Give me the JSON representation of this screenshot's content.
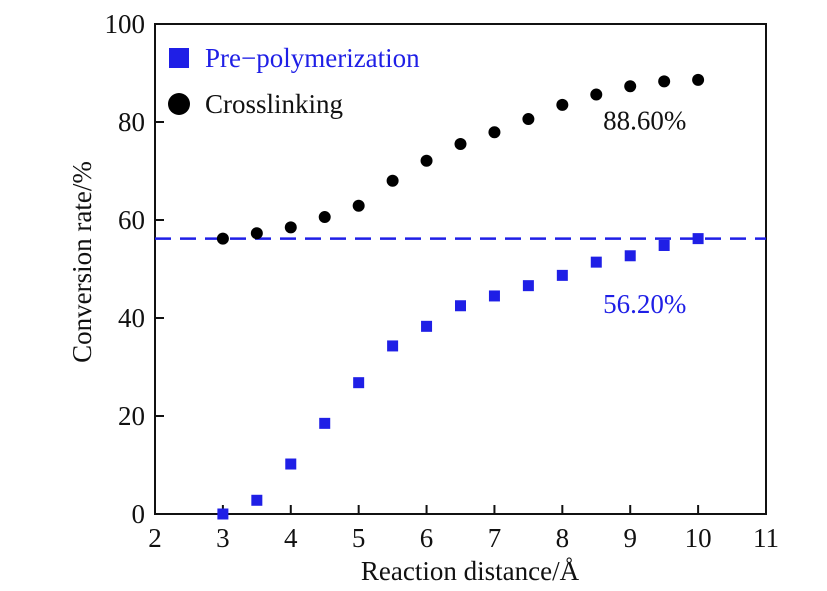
{
  "chart_data": {
    "type": "scatter",
    "xlabel": "Reaction distance/Å",
    "ylabel": "Conversion rate/%",
    "xlim": [
      2,
      11
    ],
    "ylim": [
      0,
      100
    ],
    "x_ticks": [
      2,
      3,
      4,
      5,
      6,
      7,
      8,
      9,
      10,
      11
    ],
    "y_ticks": [
      0,
      20,
      40,
      60,
      80,
      100
    ],
    "legend_position": "top-left",
    "series": [
      {
        "name": "Pre−polymerization",
        "marker": "square",
        "color": "#1f1fe6",
        "points": [
          [
            3,
            0
          ],
          [
            3.5,
            2.8
          ],
          [
            4,
            10.2
          ],
          [
            4.5,
            18.5
          ],
          [
            5,
            26.8
          ],
          [
            5.5,
            34.3
          ],
          [
            6,
            38.3
          ],
          [
            6.5,
            42.5
          ],
          [
            7,
            44.5
          ],
          [
            7.5,
            46.6
          ],
          [
            8,
            48.7
          ],
          [
            8.5,
            51.4
          ],
          [
            9,
            52.7
          ],
          [
            9.5,
            54.8
          ],
          [
            10,
            56.2
          ]
        ]
      },
      {
        "name": "Crosslinking",
        "marker": "circle",
        "color": "#000000",
        "points": [
          [
            3,
            56.2
          ],
          [
            3.5,
            57.3
          ],
          [
            4,
            58.5
          ],
          [
            4.5,
            60.6
          ],
          [
            5,
            62.9
          ],
          [
            5.5,
            68.0
          ],
          [
            6,
            72.1
          ],
          [
            6.5,
            75.5
          ],
          [
            7,
            77.9
          ],
          [
            7.5,
            80.6
          ],
          [
            8,
            83.5
          ],
          [
            8.5,
            85.6
          ],
          [
            9,
            87.3
          ],
          [
            9.5,
            88.3
          ],
          [
            10,
            88.6
          ]
        ]
      }
    ],
    "reference_line": {
      "y": 56.2,
      "style": "dashed",
      "color": "#1f1fe6"
    },
    "annotations": [
      {
        "text": "88.60%",
        "x": 8.6,
        "y": 78.5,
        "color": "#111111"
      },
      {
        "text": "56.20%",
        "x": 8.6,
        "y": 41.0,
        "color": "#1f1fe6"
      }
    ]
  }
}
